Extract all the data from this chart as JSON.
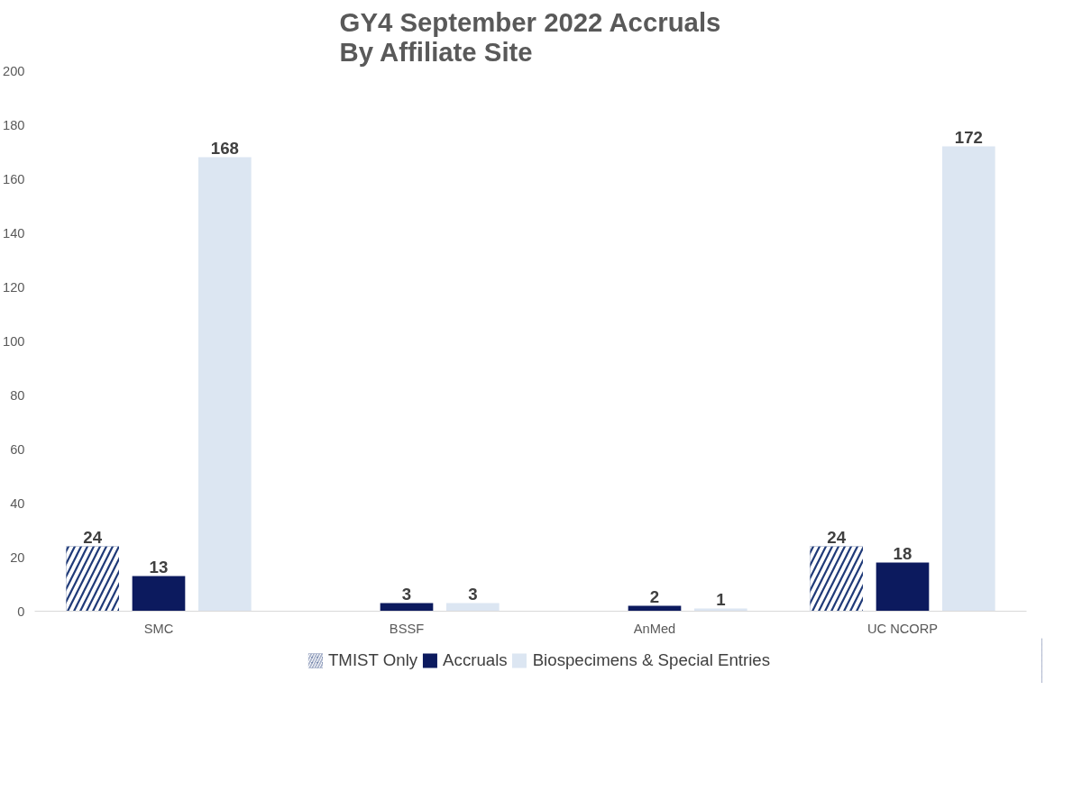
{
  "chart_data": {
    "type": "bar",
    "title": "GY4 September 2022 Accruals\nBy Affiliate Site",
    "categories": [
      "SMC",
      "BSSF",
      "AnMed",
      "UC NCORP"
    ],
    "series": [
      {
        "name": "TMIST Only",
        "color": "#1f3a78",
        "values": [
          24,
          null,
          null,
          24
        ]
      },
      {
        "name": "Accruals",
        "color": "#0c1a5e",
        "values": [
          13,
          3,
          2,
          18
        ]
      },
      {
        "name": "Biospecimens & Special Entries",
        "color": "#dce6f2",
        "values": [
          168,
          3,
          1,
          172
        ]
      }
    ],
    "ylim": [
      0,
      200
    ],
    "yticks": [
      0,
      20,
      40,
      60,
      80,
      100,
      120,
      140,
      160,
      180,
      200
    ],
    "grid": false,
    "legend": "bottom",
    "data_labels": true
  }
}
